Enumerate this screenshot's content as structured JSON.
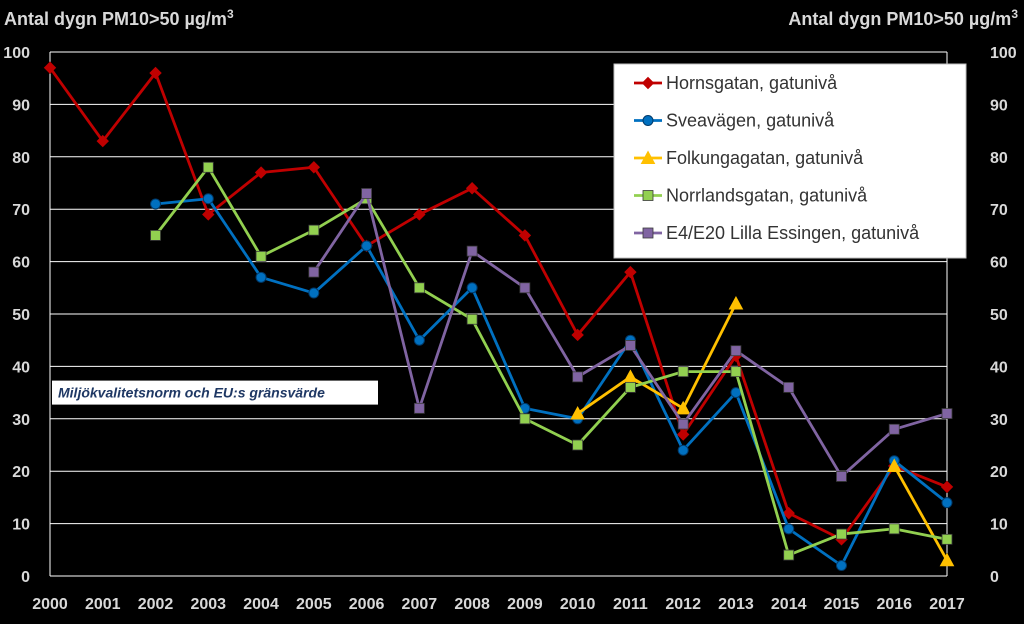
{
  "chart_data": {
    "type": "line",
    "y_axis_title_left": "Antal dygn PM10>50 µg/m",
    "y_axis_title_right": "Antal dygn PM10>50 µg/m",
    "y_axis_title_sup": "3",
    "ylim": [
      0,
      100
    ],
    "yticks": [
      "0",
      "10",
      "20",
      "30",
      "40",
      "50",
      "60",
      "70",
      "80",
      "90",
      "100"
    ],
    "x": [
      "2000",
      "2001",
      "2002",
      "2003",
      "2004",
      "2005",
      "2006",
      "2007",
      "2008",
      "2009",
      "2010",
      "2011",
      "2012",
      "2013",
      "2014",
      "2015",
      "2016",
      "2017"
    ],
    "grid": true,
    "legend_position": "top-right",
    "reference_line": {
      "value": 35,
      "label": "Miljökvalitetsnorm och EU:s gränsvärde"
    },
    "series": [
      {
        "name": "Hornsgatan, gatunivå",
        "color": "#c00000",
        "marker": "diamond",
        "values": [
          97,
          83,
          96,
          69,
          77,
          78,
          63,
          69,
          74,
          65,
          46,
          58,
          27,
          42,
          12,
          7,
          21,
          17
        ]
      },
      {
        "name": "Sveavägen, gatunivå",
        "color": "#0070c0",
        "marker": "circle",
        "values": [
          null,
          null,
          71,
          72,
          57,
          54,
          63,
          45,
          55,
          32,
          30,
          45,
          24,
          35,
          9,
          2,
          22,
          14
        ]
      },
      {
        "name": "Folkungagatan, gatunivå",
        "color": "#ffc000",
        "marker": "triangle",
        "values": [
          null,
          null,
          null,
          null,
          null,
          null,
          null,
          null,
          null,
          null,
          31,
          38,
          32,
          52,
          null,
          null,
          21,
          3
        ]
      },
      {
        "name": "Norrlandsgatan, gatunivå",
        "color": "#92d050",
        "marker": "square",
        "values": [
          null,
          null,
          65,
          78,
          61,
          66,
          72,
          55,
          49,
          30,
          25,
          36,
          39,
          39,
          4,
          8,
          9,
          7
        ]
      },
      {
        "name": "E4/E20 Lilla Essingen, gatunivå",
        "color": "#8064a2",
        "marker": "square",
        "values": [
          null,
          null,
          null,
          null,
          null,
          58,
          73,
          32,
          62,
          55,
          38,
          44,
          29,
          43,
          36,
          19,
          28,
          31
        ]
      }
    ]
  }
}
